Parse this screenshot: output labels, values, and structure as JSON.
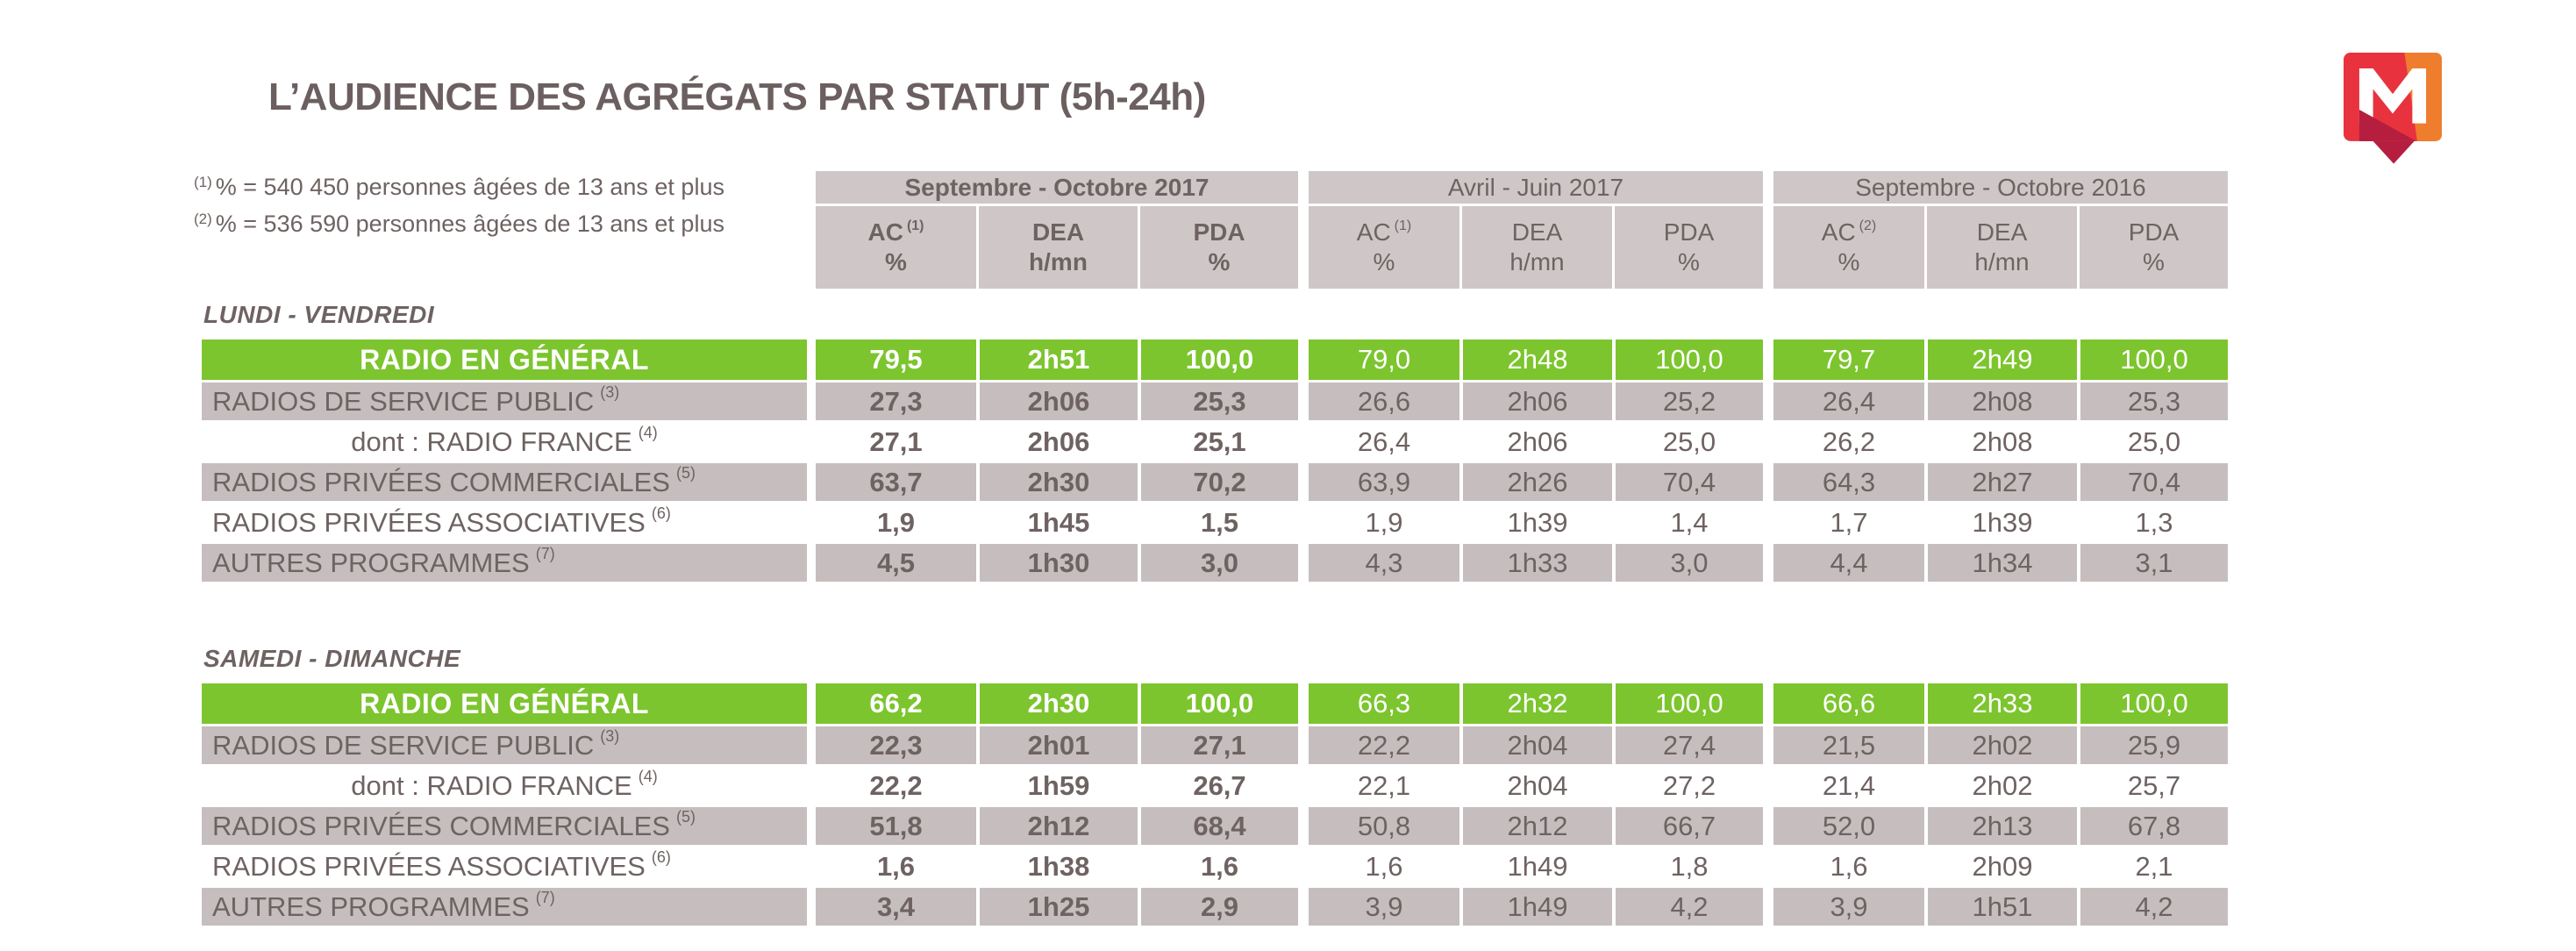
{
  "title": "L’AUDIENCE DES AGRÉGATS PAR STATUT (5h-24h)",
  "logo": {
    "name": "Médiamétrie",
    "red": "#e8333f",
    "orange": "#ef7d2e",
    "dark_red": "#b51e3e"
  },
  "colors": {
    "accent_green": "#7cc52e",
    "row_gray": "#c6bebe",
    "header_gray": "#cfc7c7",
    "text": "#6e6362"
  },
  "footnotes": [
    {
      "sup": "(1)",
      "text": "% = 540 450 personnes âgées de 13 ans et plus"
    },
    {
      "sup": "(2)",
      "text": "% = 536 590 personnes âgées de 13 ans et plus"
    }
  ],
  "columns": {
    "groups": [
      {
        "label": "Septembre - Octobre 2017",
        "bold": true,
        "cols": [
          {
            "top": "AC",
            "sup": "(1)",
            "bottom": "%"
          },
          {
            "top": "DEA",
            "sup": "",
            "bottom": "h/mn"
          },
          {
            "top": "PDA",
            "sup": "",
            "bottom": "%"
          }
        ]
      },
      {
        "label": "Avril - Juin 2017",
        "bold": false,
        "cols": [
          {
            "top": "AC",
            "sup": "(1)",
            "bottom": "%"
          },
          {
            "top": "DEA",
            "sup": "",
            "bottom": "h/mn"
          },
          {
            "top": "PDA",
            "sup": "",
            "bottom": "%"
          }
        ]
      },
      {
        "label": "Septembre - Octobre 2016",
        "bold": false,
        "cols": [
          {
            "top": "AC",
            "sup": "(2)",
            "bottom": "%"
          },
          {
            "top": "DEA",
            "sup": "",
            "bottom": "h/mn"
          },
          {
            "top": "PDA",
            "sup": "",
            "bottom": "%"
          }
        ]
      }
    ]
  },
  "sections": [
    {
      "label": "LUNDI - VENDREDI",
      "rows": [
        {
          "label": "RADIO EN GÉNÉRAL",
          "sup": "",
          "type": "green",
          "align": "center",
          "values": [
            "79,5",
            "2h51",
            "100,0",
            "79,0",
            "2h48",
            "100,0",
            "79,7",
            "2h49",
            "100,0"
          ]
        },
        {
          "label": "RADIOS DE SERVICE PUBLIC",
          "sup": "(3)",
          "type": "gray",
          "align": "left",
          "values": [
            "27,3",
            "2h06",
            "25,3",
            "26,6",
            "2h06",
            "25,2",
            "26,4",
            "2h08",
            "25,3"
          ]
        },
        {
          "label": "dont : RADIO FRANCE",
          "sup": "(4)",
          "type": "white",
          "align": "center",
          "values": [
            "27,1",
            "2h06",
            "25,1",
            "26,4",
            "2h06",
            "25,0",
            "26,2",
            "2h08",
            "25,0"
          ]
        },
        {
          "label": "RADIOS PRIVÉES COMMERCIALES",
          "sup": "(5)",
          "type": "gray",
          "align": "left",
          "values": [
            "63,7",
            "2h30",
            "70,2",
            "63,9",
            "2h26",
            "70,4",
            "64,3",
            "2h27",
            "70,4"
          ]
        },
        {
          "label": "RADIOS PRIVÉES ASSOCIATIVES",
          "sup": "(6)",
          "type": "white",
          "align": "left",
          "values": [
            "1,9",
            "1h45",
            "1,5",
            "1,9",
            "1h39",
            "1,4",
            "1,7",
            "1h39",
            "1,3"
          ]
        },
        {
          "label": "AUTRES PROGRAMMES",
          "sup": "(7)",
          "type": "gray",
          "align": "left",
          "values": [
            "4,5",
            "1h30",
            "3,0",
            "4,3",
            "1h33",
            "3,0",
            "4,4",
            "1h34",
            "3,1"
          ]
        }
      ]
    },
    {
      "label": "SAMEDI - DIMANCHE",
      "rows": [
        {
          "label": "RADIO EN GÉNÉRAL",
          "sup": "",
          "type": "green",
          "align": "center",
          "values": [
            "66,2",
            "2h30",
            "100,0",
            "66,3",
            "2h32",
            "100,0",
            "66,6",
            "2h33",
            "100,0"
          ]
        },
        {
          "label": "RADIOS DE SERVICE PUBLIC",
          "sup": "(3)",
          "type": "gray",
          "align": "left",
          "values": [
            "22,3",
            "2h01",
            "27,1",
            "22,2",
            "2h04",
            "27,4",
            "21,5",
            "2h02",
            "25,9"
          ]
        },
        {
          "label": "dont : RADIO FRANCE",
          "sup": "(4)",
          "type": "white",
          "align": "center",
          "values": [
            "22,2",
            "1h59",
            "26,7",
            "22,1",
            "2h04",
            "27,2",
            "21,4",
            "2h02",
            "25,7"
          ]
        },
        {
          "label": "RADIOS PRIVÉES COMMERCIALES",
          "sup": "(5)",
          "type": "gray",
          "align": "left",
          "values": [
            "51,8",
            "2h12",
            "68,4",
            "50,8",
            "2h12",
            "66,7",
            "52,0",
            "2h13",
            "67,8"
          ]
        },
        {
          "label": "RADIOS PRIVÉES ASSOCIATIVES",
          "sup": "(6)",
          "type": "white",
          "align": "left",
          "values": [
            "1,6",
            "1h38",
            "1,6",
            "1,6",
            "1h49",
            "1,8",
            "1,6",
            "2h09",
            "2,1"
          ]
        },
        {
          "label": "AUTRES PROGRAMMES",
          "sup": "(7)",
          "type": "gray",
          "align": "left",
          "values": [
            "3,4",
            "1h25",
            "2,9",
            "3,9",
            "1h49",
            "4,2",
            "3,9",
            "1h51",
            "4,2"
          ]
        }
      ]
    }
  ]
}
